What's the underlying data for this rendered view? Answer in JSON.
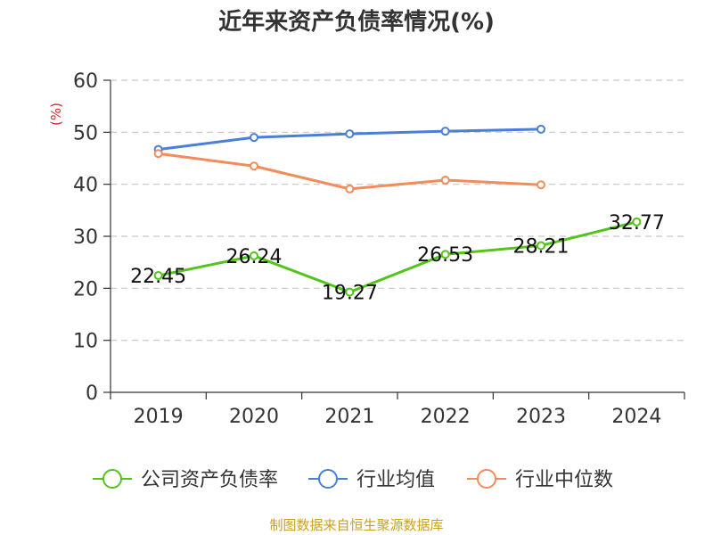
{
  "chart_data": {
    "type": "line",
    "title": "近年来资产负债率情况(%)",
    "ylabel": "(%)",
    "categories": [
      "2019",
      "2020",
      "2021",
      "2022",
      "2023",
      "2024"
    ],
    "ylim": [
      0,
      60
    ],
    "yticks": [
      0,
      10,
      20,
      30,
      40,
      50,
      60
    ],
    "grid": true,
    "legend_position": "bottom",
    "series": [
      {
        "name": "公司资产负债率",
        "color": "#52c41a",
        "values": [
          22.45,
          26.24,
          19.27,
          26.53,
          28.21,
          32.77
        ],
        "labels": [
          "22.45",
          "26.24",
          "19.27",
          "26.53",
          "28.21",
          "32.77"
        ]
      },
      {
        "name": "行业均值",
        "color": "#4a7fd8",
        "values": [
          46.7,
          49.0,
          49.7,
          50.2,
          50.6,
          null
        ]
      },
      {
        "name": "行业中位数",
        "color": "#f28c5a",
        "values": [
          45.9,
          43.5,
          39.1,
          40.8,
          39.9,
          null
        ]
      }
    ]
  },
  "source": "制图数据来自恒生聚源数据库",
  "colors": {
    "ylabel": "#d9262c",
    "grid": "#c8c8c8",
    "axis": "#333333"
  }
}
